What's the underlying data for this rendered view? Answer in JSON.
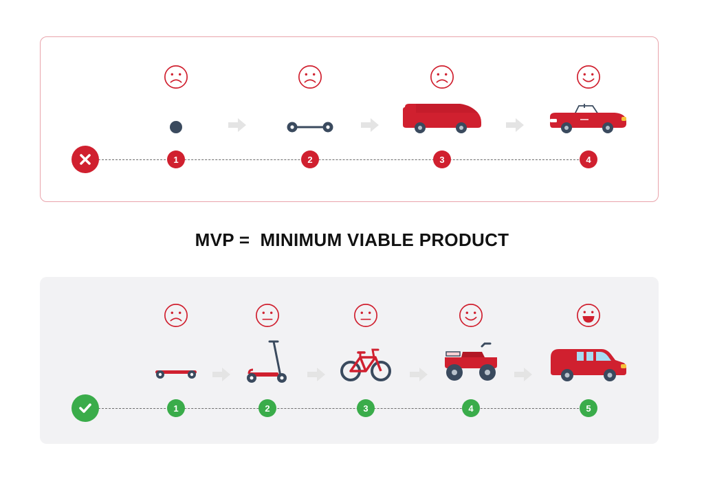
{
  "headline": "MVP =  MINIMUM VIABLE PRODUCT",
  "colors": {
    "red": "#d0202f",
    "green": "#3aac4a",
    "dark": "#3a4a5e",
    "arrow_gray": "#e4e4e4",
    "panel_gray": "#f2f2f4"
  },
  "wrong_way": {
    "status_icon": "x-icon",
    "steps": [
      {
        "number": "1",
        "product": "wheel-icon",
        "mood": "sad-face-icon"
      },
      {
        "number": "2",
        "product": "axle-icon",
        "mood": "sad-face-icon"
      },
      {
        "number": "3",
        "product": "car-body-icon",
        "mood": "sad-face-icon"
      },
      {
        "number": "4",
        "product": "convertible-car-icon",
        "mood": "happy-face-icon"
      }
    ]
  },
  "right_way": {
    "status_icon": "checkmark-icon",
    "steps": [
      {
        "number": "1",
        "product": "skateboard-icon",
        "mood": "sad-face-icon"
      },
      {
        "number": "2",
        "product": "kick-scooter-icon",
        "mood": "neutral-face-icon"
      },
      {
        "number": "3",
        "product": "bicycle-icon",
        "mood": "neutral-face-icon"
      },
      {
        "number": "4",
        "product": "motorcycle-icon",
        "mood": "happy-face-icon"
      },
      {
        "number": "5",
        "product": "car-icon",
        "mood": "very-happy-face-icon"
      }
    ]
  }
}
